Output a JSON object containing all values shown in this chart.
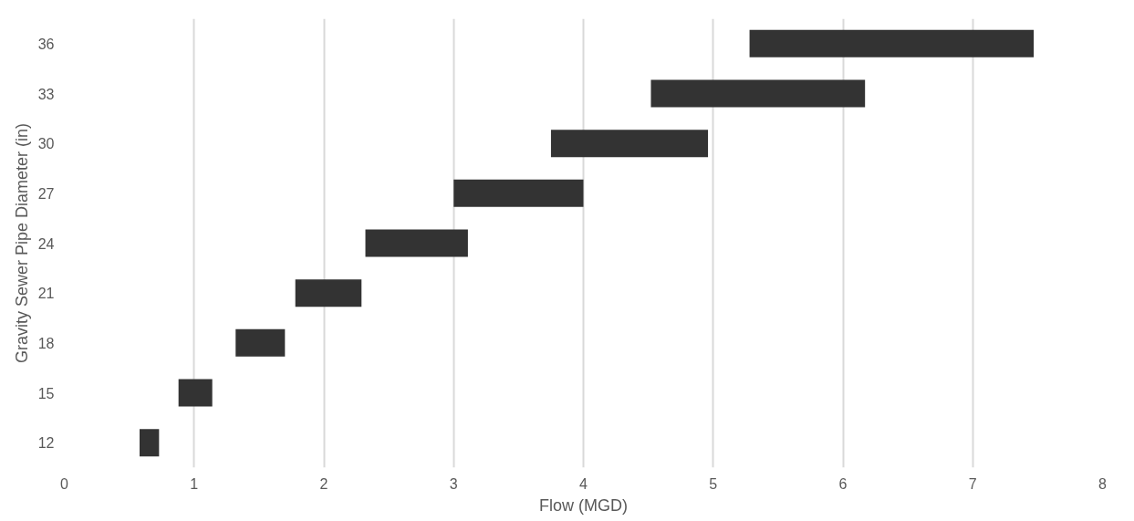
{
  "chart_data": {
    "type": "bar",
    "orientation": "horizontal",
    "xlabel": "Flow (MGD)",
    "ylabel": "Gravity Sewer Pipe Diameter (in)",
    "categories": [
      "36",
      "33",
      "30",
      "27",
      "24",
      "21",
      "18",
      "15",
      "12"
    ],
    "base": [
      5.28,
      4.52,
      3.75,
      3.0,
      2.32,
      1.78,
      1.32,
      0.88,
      0.58
    ],
    "values": [
      2.19,
      1.65,
      1.21,
      1.0,
      0.79,
      0.51,
      0.38,
      0.26,
      0.15
    ],
    "color": "#333333",
    "xlim": [
      0,
      8
    ],
    "xticks": [
      0,
      1,
      2,
      3,
      4,
      5,
      6,
      7,
      8
    ],
    "grid": "x"
  }
}
